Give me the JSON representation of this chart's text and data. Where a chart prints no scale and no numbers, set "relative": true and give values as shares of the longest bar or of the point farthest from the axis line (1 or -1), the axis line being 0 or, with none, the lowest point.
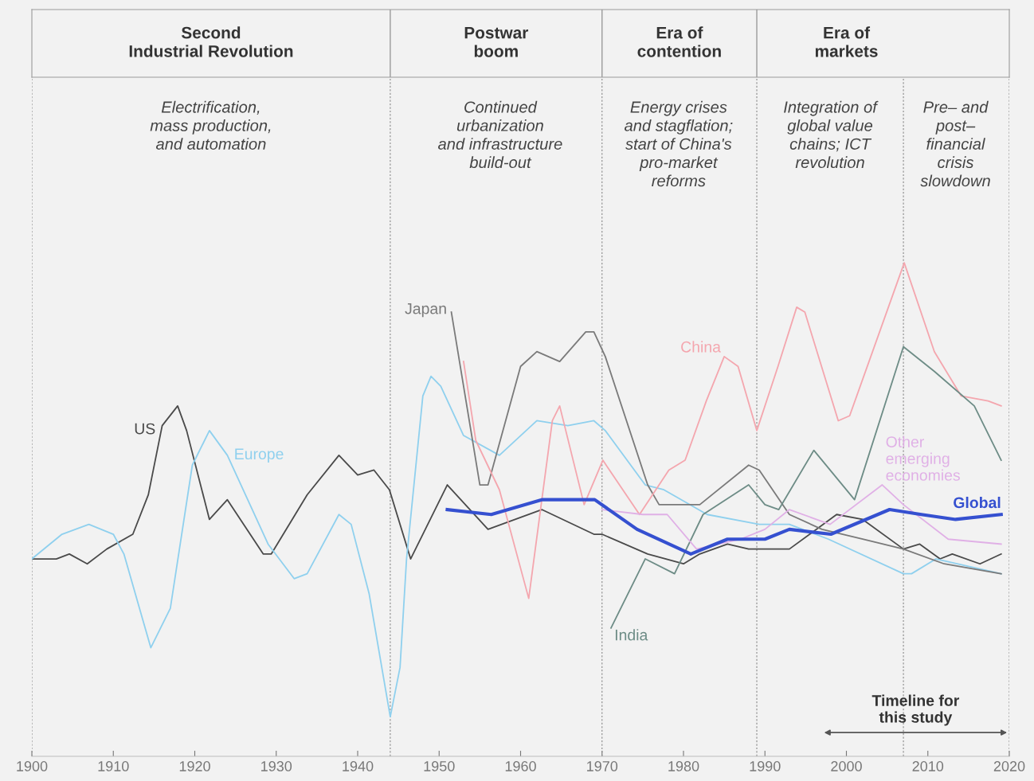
{
  "chart_data": {
    "type": "line",
    "relative": true,
    "xlim": [
      1900,
      2020
    ],
    "xticks": [
      1900,
      1910,
      1920,
      1930,
      1940,
      1950,
      1960,
      1970,
      1980,
      1990,
      2000,
      2010,
      2020
    ],
    "series": [
      {
        "name": "US",
        "color": "#4a4a4a",
        "x": [
          1900,
          1903,
          1904.6,
          1906.8,
          1909.2,
          1912.4,
          1914.3,
          1916,
          1917.9,
          1919,
          1921.8,
          1924,
          1928.4,
          1929.4,
          1933.8,
          1937.7,
          1940,
          1942,
          1943.9,
          1946.5,
          1951,
          1956,
          1962.6,
          1969,
          1970,
          1975.6,
          1980,
          1982,
          1985.4,
          1988,
          1993,
          1998.8,
          2002,
          2007,
          2009,
          2011.5,
          2013,
          2016.4,
          2019
        ],
        "values": [
          0.4,
          0.4,
          0.41,
          0.39,
          0.42,
          0.45,
          0.53,
          0.67,
          0.71,
          0.66,
          0.48,
          0.52,
          0.41,
          0.41,
          0.53,
          0.61,
          0.57,
          0.58,
          0.54,
          0.4,
          0.55,
          0.46,
          0.5,
          0.45,
          0.45,
          0.41,
          0.39,
          0.41,
          0.43,
          0.42,
          0.42,
          0.49,
          0.48,
          0.42,
          0.43,
          0.4,
          0.41,
          0.39,
          0.41
        ]
      },
      {
        "name": "Europe",
        "color": "#8fd0ee",
        "x": [
          1900,
          1903.7,
          1907,
          1910,
          1911.3,
          1914.6,
          1917,
          1919.7,
          1921.8,
          1924,
          1929,
          1932.2,
          1933.8,
          1937.7,
          1939.2,
          1941.4,
          1944,
          1945.2,
          1946,
          1948,
          1949,
          1950.2,
          1953,
          1957.4,
          1962,
          1965.8,
          1969,
          1970.4,
          1975.3,
          1977.6,
          1982.9,
          1989.3,
          1993,
          1997.8,
          2007,
          2008,
          2011,
          2019
        ],
        "values": [
          0.4,
          0.45,
          0.47,
          0.45,
          0.41,
          0.22,
          0.3,
          0.59,
          0.66,
          0.61,
          0.43,
          0.36,
          0.37,
          0.49,
          0.47,
          0.33,
          0.08,
          0.18,
          0.4,
          0.73,
          0.77,
          0.75,
          0.65,
          0.61,
          0.68,
          0.67,
          0.68,
          0.66,
          0.55,
          0.54,
          0.49,
          0.47,
          0.47,
          0.44,
          0.37,
          0.37,
          0.4,
          0.37
        ]
      },
      {
        "name": "Japan",
        "color": "#7a7a7a",
        "x": [
          1951.5,
          1955,
          1956,
          1960,
          1962,
          1964.8,
          1968,
          1969,
          1970.4,
          1975.6,
          1977,
          1982,
          1988,
          1989.3,
          1993,
          1997,
          2002,
          2007,
          2012,
          2019
        ],
        "values": [
          0.9,
          0.55,
          0.55,
          0.79,
          0.82,
          0.8,
          0.86,
          0.86,
          0.81,
          0.55,
          0.51,
          0.51,
          0.59,
          0.58,
          0.49,
          0.46,
          0.44,
          0.42,
          0.39,
          0.37
        ]
      },
      {
        "name": "China",
        "color": "#f4a6ae",
        "x": [
          1953,
          1954.5,
          1957.4,
          1961,
          1963.9,
          1964.8,
          1967.8,
          1970.1,
          1974.6,
          1978.2,
          1980.2,
          1982.8,
          1985,
          1986.7,
          1989,
          1991.6,
          1993.9,
          1994.9,
          1999,
          2000.4,
          2007.1,
          2010.8,
          2014.1,
          2017.4,
          2019
        ],
        "values": [
          0.8,
          0.64,
          0.54,
          0.32,
          0.68,
          0.71,
          0.51,
          0.6,
          0.49,
          0.58,
          0.6,
          0.72,
          0.81,
          0.79,
          0.66,
          0.79,
          0.91,
          0.9,
          0.68,
          0.69,
          1.0,
          0.82,
          0.73,
          0.72,
          0.71
        ]
      },
      {
        "name": "India",
        "color": "#6d8c86",
        "x": [
          1971.1,
          1975.3,
          1978.9,
          1982.4,
          1988,
          1990,
          1991.7,
          1996,
          2001,
          2007,
          2010.8,
          2015.7,
          2019
        ],
        "values": [
          0.26,
          0.4,
          0.37,
          0.49,
          0.55,
          0.51,
          0.5,
          0.62,
          0.52,
          0.83,
          0.78,
          0.71,
          0.6
        ]
      },
      {
        "name": "Other\nemerging\neconomies",
        "color": "#e0b0e6",
        "x": [
          1970,
          1975,
          1978,
          1981.6,
          1987,
          1990,
          1993,
          1998,
          2004.4,
          2007,
          2012.5,
          2019
        ],
        "values": [
          0.5,
          0.49,
          0.49,
          0.42,
          0.44,
          0.46,
          0.5,
          0.47,
          0.55,
          0.51,
          0.44,
          0.43
        ]
      },
      {
        "name": "Global",
        "color": "#3550d0",
        "x": [
          1951,
          1956.4,
          1962.6,
          1966.5,
          1969.1,
          1974.3,
          1980.9,
          1985.4,
          1990,
          1993,
          1998.1,
          2005.3,
          2009.2,
          2013.4,
          2019
        ],
        "values": [
          0.5,
          0.49,
          0.52,
          0.52,
          0.52,
          0.46,
          0.41,
          0.44,
          0.44,
          0.46,
          0.45,
          0.5,
          0.49,
          0.48,
          0.49
        ]
      }
    ],
    "ref_lines": [
      {
        "axis": "x",
        "value": 1944,
        "line_style": "dashed"
      },
      {
        "axis": "x",
        "value": 1970,
        "line_style": "dashed"
      },
      {
        "axis": "x",
        "value": 1989,
        "line_style": "dashed"
      },
      {
        "axis": "x",
        "value": 2007,
        "line_style": "dashed"
      }
    ],
    "annotations": [
      "Second\nIndustrial Revolution",
      "Postwar\nboom",
      "Era of\ncontention",
      "Era of\nmarkets",
      "Electrification,\nmass production,\nand automation",
      "Continued\nurbanization\nand infrastructure\nbuild-out",
      "Energy crises\nand stagflation;\nstart of China's\npro-market\nreforms",
      "Integration of\nglobal value\nchains; ICT\nrevolution",
      "Pre– and\npost–\nfinancial\ncrisis\nslowdown",
      "Timeline for\nthis study"
    ]
  }
}
